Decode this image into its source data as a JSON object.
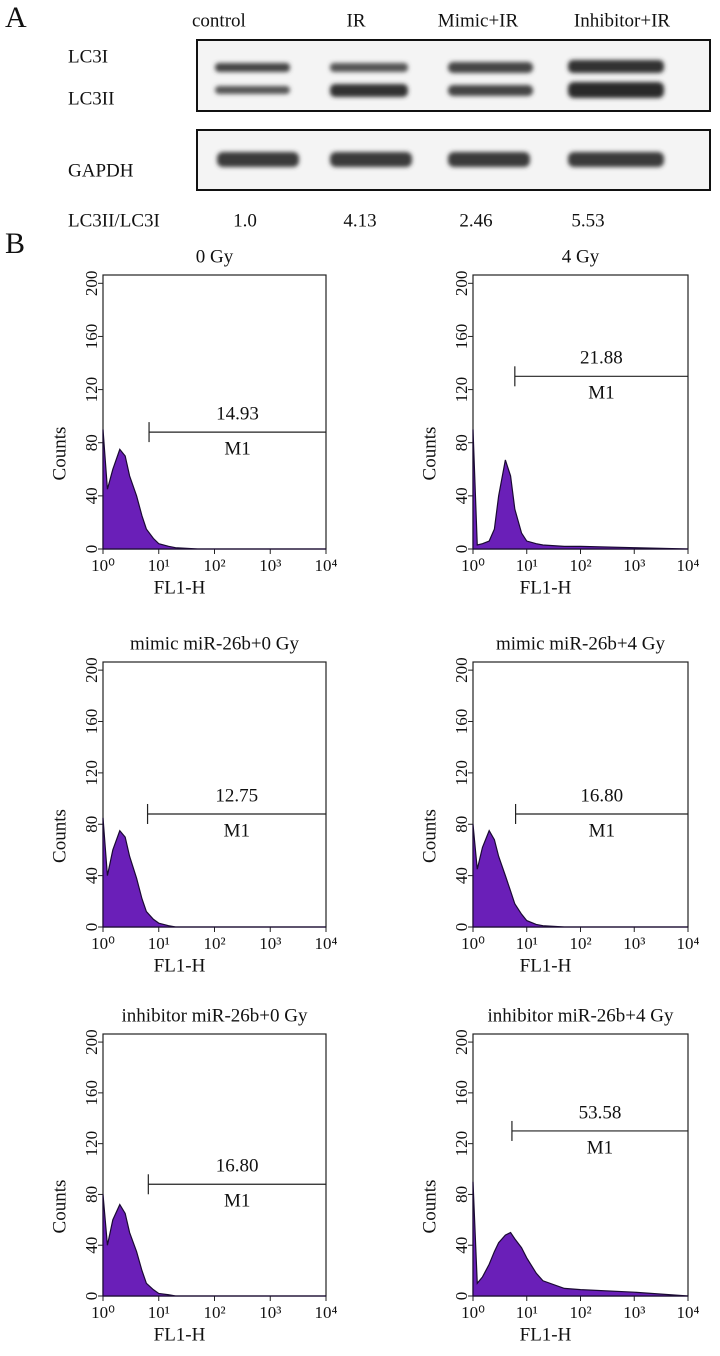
{
  "panel_a": {
    "label": "A",
    "lanes": [
      "control",
      "IR",
      "Mimic+IR",
      "Inhibitor+IR"
    ],
    "bands": [
      "LC3I",
      "LC3II"
    ],
    "loading_control": "GAPDH",
    "ratio_label": "LC3II/LC3I",
    "ratios": [
      "1.0",
      "4.13",
      "2.46",
      "5.53"
    ]
  },
  "panel_b_label": "B",
  "chart_data": [
    {
      "type": "area",
      "title": "0 Gy",
      "x_label": "FL1-H",
      "y_label": "Counts",
      "x_scale": "log",
      "xlim": [
        1,
        10000
      ],
      "ylim": [
        0,
        204
      ],
      "xticks": [
        {
          "value": 1,
          "label": "10⁰"
        },
        {
          "value": 10,
          "label": "10¹"
        },
        {
          "value": 100,
          "label": "10²"
        },
        {
          "value": 1000,
          "label": "10³"
        },
        {
          "value": 10000,
          "label": "10⁴"
        }
      ],
      "yticks": [
        0,
        40,
        80,
        120,
        160,
        200
      ],
      "color": "#6a1fb8",
      "x": [
        1,
        1.2,
        1.5,
        2,
        2.5,
        3,
        4,
        5,
        6,
        8,
        10,
        15,
        20,
        50,
        100,
        1000,
        10000
      ],
      "values": [
        90,
        45,
        60,
        75,
        70,
        55,
        40,
        25,
        15,
        8,
        4,
        2,
        1,
        0,
        0,
        0,
        0
      ],
      "gate": {
        "x": [
          6.7,
          10000
        ],
        "percent": "14.93",
        "label": "M1"
      }
    },
    {
      "type": "area",
      "title": "4 Gy",
      "x_label": "FL1-H",
      "y_label": "Counts",
      "x_scale": "log",
      "xlim": [
        1,
        10000
      ],
      "ylim": [
        0,
        204
      ],
      "xticks": [
        {
          "value": 1,
          "label": "10⁰"
        },
        {
          "value": 10,
          "label": "10¹"
        },
        {
          "value": 100,
          "label": "10²"
        },
        {
          "value": 1000,
          "label": "10³"
        },
        {
          "value": 10000,
          "label": "10⁴"
        }
      ],
      "yticks": [
        0,
        40,
        80,
        120,
        160,
        200
      ],
      "color": "#6a1fb8",
      "x": [
        1,
        1.2,
        1.5,
        2,
        2.5,
        3,
        4,
        5,
        6,
        8,
        10,
        15,
        20,
        50,
        100,
        1000,
        10000
      ],
      "values": [
        90,
        3,
        4,
        6,
        15,
        40,
        67,
        55,
        30,
        12,
        6,
        4,
        3,
        2,
        2,
        1,
        0
      ],
      "gate": {
        "x": [
          6,
          10000
        ],
        "percent": "21.88",
        "label": "M1"
      }
    },
    {
      "type": "area",
      "title": "mimic miR-26b+0 Gy",
      "x_label": "FL1-H",
      "y_label": "Counts",
      "x_scale": "log",
      "xlim": [
        1,
        10000
      ],
      "ylim": [
        0,
        204
      ],
      "xticks": [
        {
          "value": 1,
          "label": "10⁰"
        },
        {
          "value": 10,
          "label": "10¹"
        },
        {
          "value": 100,
          "label": "10²"
        },
        {
          "value": 1000,
          "label": "10³"
        },
        {
          "value": 10000,
          "label": "10⁴"
        }
      ],
      "yticks": [
        0,
        40,
        80,
        120,
        160,
        200
      ],
      "color": "#6a1fb8",
      "x": [
        1,
        1.2,
        1.5,
        2,
        2.5,
        3,
        4,
        5,
        6,
        8,
        10,
        15,
        20,
        50,
        100,
        1000,
        10000
      ],
      "values": [
        85,
        40,
        60,
        75,
        70,
        55,
        38,
        22,
        12,
        6,
        3,
        1,
        0,
        0,
        0,
        0,
        0
      ],
      "gate": {
        "x": [
          6.3,
          10000
        ],
        "percent": "12.75",
        "label": "M1"
      }
    },
    {
      "type": "area",
      "title": "mimic miR-26b+4 Gy",
      "x_label": "FL1-H",
      "y_label": "Counts",
      "x_scale": "log",
      "xlim": [
        1,
        10000
      ],
      "ylim": [
        0,
        204
      ],
      "xticks": [
        {
          "value": 1,
          "label": "10⁰"
        },
        {
          "value": 10,
          "label": "10¹"
        },
        {
          "value": 100,
          "label": "10²"
        },
        {
          "value": 1000,
          "label": "10³"
        },
        {
          "value": 10000,
          "label": "10⁴"
        }
      ],
      "yticks": [
        0,
        40,
        80,
        120,
        160,
        200
      ],
      "color": "#6a1fb8",
      "x": [
        1,
        1.2,
        1.5,
        2,
        2.5,
        3,
        4,
        5,
        6,
        8,
        10,
        15,
        20,
        50,
        100,
        1000,
        10000
      ],
      "values": [
        80,
        45,
        62,
        75,
        68,
        55,
        40,
        28,
        18,
        10,
        5,
        2,
        1,
        0,
        0,
        0,
        0
      ],
      "gate": {
        "x": [
          6.2,
          10000
        ],
        "percent": "16.80",
        "label": "M1"
      }
    },
    {
      "type": "area",
      "title": "inhibitor miR-26b+0 Gy",
      "x_label": "FL1-H",
      "y_label": "Counts",
      "x_scale": "log",
      "xlim": [
        1,
        10000
      ],
      "ylim": [
        0,
        204
      ],
      "xticks": [
        {
          "value": 1,
          "label": "10⁰"
        },
        {
          "value": 10,
          "label": "10¹"
        },
        {
          "value": 100,
          "label": "10²"
        },
        {
          "value": 1000,
          "label": "10³"
        },
        {
          "value": 10000,
          "label": "10⁴"
        }
      ],
      "yticks": [
        0,
        40,
        80,
        120,
        160,
        200
      ],
      "color": "#6a1fb8",
      "x": [
        1,
        1.2,
        1.5,
        2,
        2.5,
        3,
        4,
        5,
        6,
        8,
        10,
        15,
        20,
        50,
        100,
        1000,
        10000
      ],
      "values": [
        80,
        40,
        60,
        72,
        65,
        50,
        35,
        20,
        10,
        5,
        2,
        1,
        0,
        0,
        0,
        0,
        0
      ],
      "gate": {
        "x": [
          6.5,
          10000
        ],
        "percent": "16.80",
        "label": "M1"
      }
    },
    {
      "type": "area",
      "title": "inhibitor miR-26b+4  Gy",
      "x_label": "FL1-H",
      "y_label": "Counts",
      "x_scale": "log",
      "xlim": [
        1,
        10000
      ],
      "ylim": [
        0,
        204
      ],
      "xticks": [
        {
          "value": 1,
          "label": "10⁰"
        },
        {
          "value": 10,
          "label": "10¹"
        },
        {
          "value": 100,
          "label": "10²"
        },
        {
          "value": 1000,
          "label": "10³"
        },
        {
          "value": 10000,
          "label": "10⁴"
        }
      ],
      "yticks": [
        0,
        40,
        80,
        120,
        160,
        200
      ],
      "color": "#6a1fb8",
      "x": [
        1,
        1.2,
        1.5,
        2,
        2.5,
        3,
        4,
        5,
        6,
        8,
        10,
        15,
        20,
        50,
        100,
        1000,
        10000
      ],
      "values": [
        90,
        10,
        15,
        25,
        35,
        42,
        48,
        50,
        45,
        38,
        30,
        18,
        12,
        6,
        5,
        3,
        0
      ],
      "gate": {
        "x": [
          5.3,
          10000
        ],
        "percent": "53.58",
        "label": "M1"
      }
    }
  ]
}
